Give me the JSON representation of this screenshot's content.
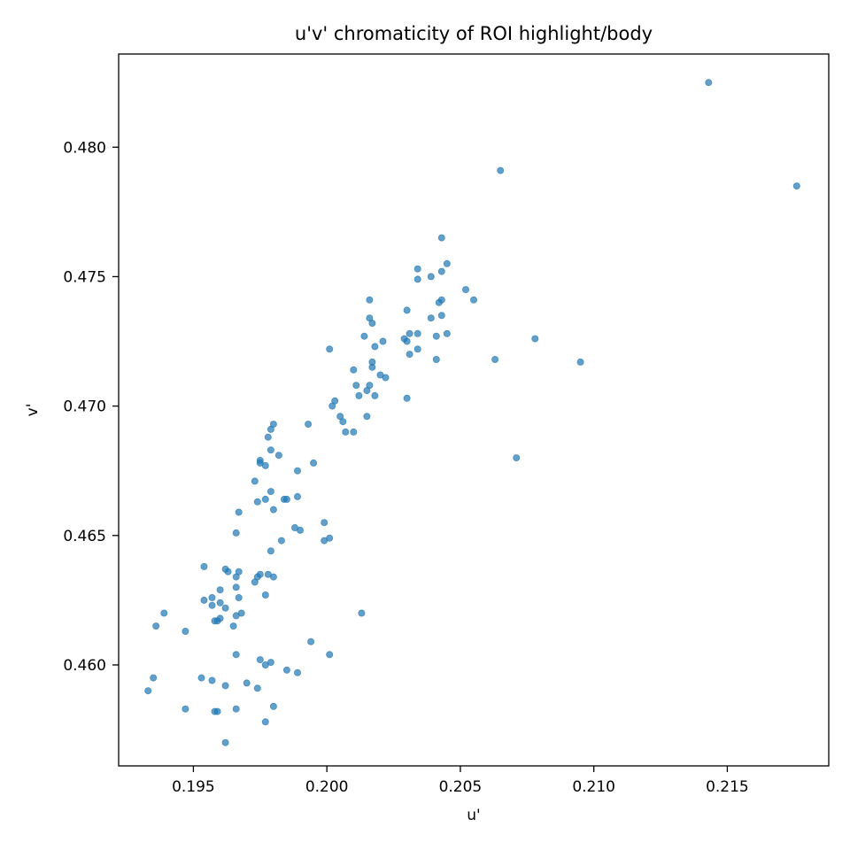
{
  "chart_data": {
    "type": "scatter",
    "title": "u'v' chromaticity of ROI highlight/body",
    "xlabel": "u'",
    "ylabel": "v'",
    "xlim": [
      0.1922,
      0.2188
    ],
    "ylim": [
      0.4561,
      0.4836
    ],
    "xticks": [
      0.195,
      0.2,
      0.205,
      0.21,
      0.215
    ],
    "xtick_labels": [
      "0.195",
      "0.200",
      "0.205",
      "0.210",
      "0.215"
    ],
    "yticks": [
      0.46,
      0.465,
      0.47,
      0.475,
      0.48
    ],
    "ytick_labels": [
      "0.460",
      "0.465",
      "0.470",
      "0.475",
      "0.480"
    ],
    "grid": false,
    "marker_color": "#1f77b4",
    "marker_alpha": 0.7,
    "series": [
      {
        "x": [
          0.2143,
          0.2176,
          0.2065,
          0.2043,
          0.2034,
          0.2045,
          0.2043,
          0.2034,
          0.2039,
          0.2052,
          0.2043,
          0.2042,
          0.2055,
          0.2016,
          0.203,
          0.2043,
          0.2039,
          0.2016,
          0.2017,
          0.2034,
          0.2045,
          0.2014,
          0.2031,
          0.2041,
          0.2029,
          0.203,
          0.2078,
          0.2018,
          0.2021,
          0.2034,
          0.2001,
          0.2031,
          0.2063,
          0.2041,
          0.2095,
          0.2017,
          0.201,
          0.2017,
          0.2022,
          0.202,
          0.2011,
          0.2016,
          0.2015,
          0.2012,
          0.2018,
          0.2003,
          0.2002,
          0.203,
          0.2005,
          0.2015,
          0.2006,
          0.2007,
          0.201,
          0.1993,
          0.198,
          0.1979,
          0.1978,
          0.1979,
          0.2071,
          0.1982,
          0.1975,
          0.1975,
          0.1977,
          0.1995,
          0.1989,
          0.1973,
          0.1979,
          0.1984,
          0.1985,
          0.1974,
          0.1977,
          0.1989,
          0.198,
          0.1967,
          0.1999,
          0.1988,
          0.1966,
          0.199,
          0.2001,
          0.1999,
          0.1983,
          0.1979,
          0.1954,
          0.1962,
          0.1963,
          0.1967,
          0.1975,
          0.1974,
          0.1978,
          0.1966,
          0.198,
          0.1973,
          0.1966,
          0.196,
          0.1977,
          0.1967,
          0.1957,
          0.1954,
          0.196,
          0.1957,
          0.1962,
          0.1939,
          0.1968,
          0.1966,
          0.196,
          0.1958,
          0.1959,
          0.1936,
          0.1965,
          0.1947,
          0.2013,
          0.1994,
          0.1966,
          0.2001,
          0.1975,
          0.1979,
          0.1977,
          0.1985,
          0.1989,
          0.1935,
          0.1953,
          0.1957,
          0.197,
          0.1962,
          0.1974,
          0.1933,
          0.198,
          0.1947,
          0.1966,
          0.1959,
          0.1958,
          0.1977,
          0.1962
        ],
        "y": [
          0.4825,
          0.4785,
          0.4791,
          0.4765,
          0.4753,
          0.4755,
          0.4752,
          0.4749,
          0.475,
          0.4745,
          0.4741,
          0.474,
          0.4741,
          0.4741,
          0.4737,
          0.4735,
          0.4734,
          0.4734,
          0.4732,
          0.4728,
          0.4728,
          0.4727,
          0.4728,
          0.4727,
          0.4726,
          0.4725,
          0.4726,
          0.4723,
          0.4725,
          0.4722,
          0.4722,
          0.472,
          0.4718,
          0.4718,
          0.4717,
          0.4717,
          0.4714,
          0.4715,
          0.4711,
          0.4712,
          0.4708,
          0.4708,
          0.4706,
          0.4704,
          0.4704,
          0.4702,
          0.47,
          0.4703,
          0.4696,
          0.4696,
          0.4694,
          0.469,
          0.469,
          0.4693,
          0.4693,
          0.4691,
          0.4688,
          0.4683,
          0.468,
          0.4681,
          0.4679,
          0.4678,
          0.4677,
          0.4678,
          0.4675,
          0.4671,
          0.4667,
          0.4664,
          0.4664,
          0.4663,
          0.4664,
          0.4665,
          0.466,
          0.4659,
          0.4655,
          0.4653,
          0.4651,
          0.4652,
          0.4649,
          0.4648,
          0.4648,
          0.4644,
          0.4638,
          0.4637,
          0.4636,
          0.4636,
          0.4635,
          0.4634,
          0.4635,
          0.4634,
          0.4634,
          0.4632,
          0.463,
          0.4629,
          0.4627,
          0.4626,
          0.4626,
          0.4625,
          0.4624,
          0.4623,
          0.4622,
          0.462,
          0.462,
          0.4619,
          0.4618,
          0.4617,
          0.4617,
          0.4615,
          0.4615,
          0.4613,
          0.462,
          0.4609,
          0.4604,
          0.4604,
          0.4602,
          0.4601,
          0.46,
          0.4598,
          0.4597,
          0.4595,
          0.4595,
          0.4594,
          0.4593,
          0.4592,
          0.4591,
          0.459,
          0.4584,
          0.4583,
          0.4583,
          0.4582,
          0.4582,
          0.4578,
          0.457
        ]
      }
    ]
  }
}
